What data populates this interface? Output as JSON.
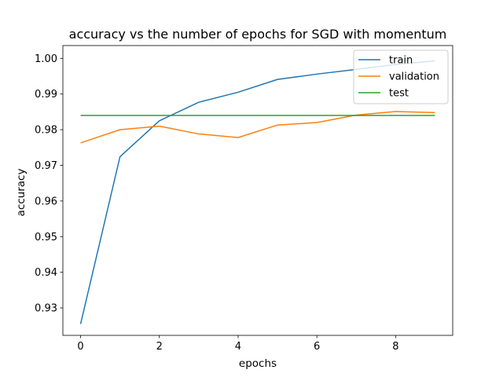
{
  "chart_data": {
    "type": "line",
    "title": "accuracy vs the number of epochs for SGD with momentum",
    "xlabel": "epochs",
    "ylabel": "accuracy",
    "x": [
      0,
      1,
      2,
      3,
      4,
      5,
      6,
      7,
      8,
      9
    ],
    "xlim": [
      -0.45,
      9.45
    ],
    "ylim": [
      0.9223,
      1.0036
    ],
    "xticks": [
      0,
      2,
      4,
      6,
      8
    ],
    "yticks": [
      0.93,
      0.94,
      0.95,
      0.96,
      0.97,
      0.98,
      0.99,
      1.0
    ],
    "xtick_labels": [
      "0",
      "2",
      "4",
      "6",
      "8"
    ],
    "ytick_labels": [
      "0.93",
      "0.94",
      "0.95",
      "0.96",
      "0.97",
      "0.98",
      "0.99",
      "1.00"
    ],
    "grid": false,
    "legend_position": "top-right",
    "series": [
      {
        "name": "train",
        "color": "#1f77b4",
        "values": [
          0.9255,
          0.9724,
          0.9825,
          0.9877,
          0.9905,
          0.9941,
          0.9956,
          0.9969,
          0.9983,
          0.9993
        ]
      },
      {
        "name": "validation",
        "color": "#ff7f0e",
        "values": [
          0.9763,
          0.98,
          0.981,
          0.9788,
          0.9778,
          0.9813,
          0.982,
          0.9841,
          0.9851,
          0.9848
        ]
      },
      {
        "name": "test",
        "color": "#2ca02c",
        "values": [
          0.984,
          0.984,
          0.984,
          0.984,
          0.984,
          0.984,
          0.984,
          0.984,
          0.984,
          0.984
        ]
      }
    ]
  }
}
